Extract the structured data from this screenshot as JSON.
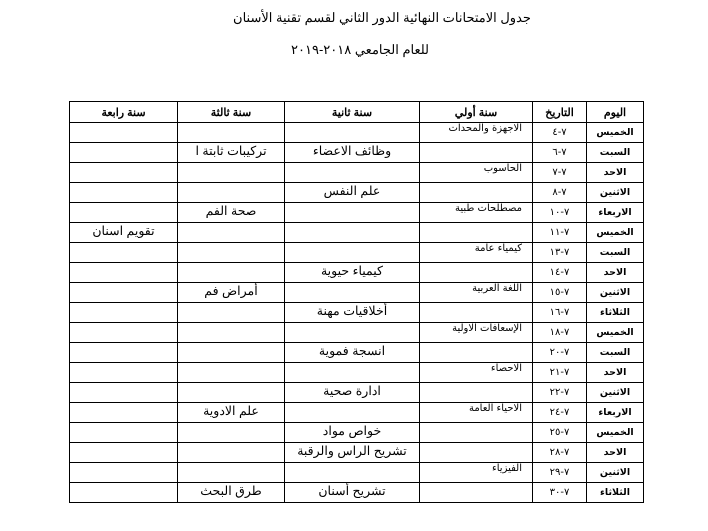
{
  "document": {
    "title": "جدول الامتحانات النهائية الدور الثاني  لقسم تقنية الأسنان",
    "subtitle": "للعام الجامعي ٢٠١٨-٢٠١٩"
  },
  "table": {
    "headers": [
      "اليوم",
      "التاريخ",
      "سنة أولي",
      "سنة ثانية",
      "سنة ثالثة",
      "سنة رابعة"
    ],
    "rows": [
      {
        "day": "الخميس",
        "date": "٧-٤",
        "year1": "الاجهزة والمحدات",
        "year2": "",
        "year3": "",
        "year4": ""
      },
      {
        "day": "السبت",
        "date": "٧-٦",
        "year1": "",
        "year2": "وظائف الاعضاء",
        "year3": "تركيبات ثابتة ا",
        "year4": ""
      },
      {
        "day": "الاحد",
        "date": "٧-٧",
        "year1": "الحاسوب",
        "year2": "",
        "year3": "",
        "year4": ""
      },
      {
        "day": "الاثنين",
        "date": "٧-٨",
        "year1": "",
        "year2": "علم النفس",
        "year3": "",
        "year4": ""
      },
      {
        "day": "الاربعاء",
        "date": "٧-١٠",
        "year1": "مصطلحات طبية",
        "year2": "",
        "year3": "صحة الفم",
        "year4": ""
      },
      {
        "day": "الخميس",
        "date": "٧-١١",
        "year1": "",
        "year2": "",
        "year3": "",
        "year4": "تقويم اسنان"
      },
      {
        "day": "السبت",
        "date": "٧-١٣",
        "year1": "كيمياء عامة",
        "year2": "",
        "year3": "",
        "year4": ""
      },
      {
        "day": "الاحد",
        "date": "٧-١٤",
        "year1": "",
        "year2": "كيمياء حيوية",
        "year3": "",
        "year4": ""
      },
      {
        "day": "الاثنين",
        "date": "٧-١٥",
        "year1": "اللغة العربية",
        "year2": "",
        "year3": "أمراض فم",
        "year4": ""
      },
      {
        "day": "الثلاثاء",
        "date": "٧-١٦",
        "year1": "",
        "year2": "أخلاقيات مهنة",
        "year3": "",
        "year4": ""
      },
      {
        "day": "الخميس",
        "date": "٧-١٨",
        "year1": "الإسعافات الاولية",
        "year2": "",
        "year3": "",
        "year4": ""
      },
      {
        "day": "السبت",
        "date": "٧-٢٠",
        "year1": "",
        "year2": "انسجة فموية",
        "year3": "",
        "year4": ""
      },
      {
        "day": "الاحد",
        "date": "٧-٢١",
        "year1": "الاحصاء",
        "year2": "",
        "year3": "",
        "year4": ""
      },
      {
        "day": "الاثنين",
        "date": "٧-٢٢",
        "year1": "",
        "year2": "ادارة صحية",
        "year3": "",
        "year4": ""
      },
      {
        "day": "الاربعاء",
        "date": "٧-٢٤",
        "year1": "الاحياء العامة",
        "year2": "",
        "year3": "علم الادوية",
        "year4": ""
      },
      {
        "day": "الخميس",
        "date": "٧-٢٥",
        "year1": "",
        "year2": "خواص مواد",
        "year3": "",
        "year4": ""
      },
      {
        "day": "الاحد",
        "date": "٧-٢٨",
        "year1": "",
        "year2": "تشريح الراس والرقبة",
        "year3": "",
        "year4": ""
      },
      {
        "day": "الاثنين",
        "date": "٧-٢٩",
        "year1": "الفيزياء",
        "year2": "",
        "year3": "",
        "year4": ""
      },
      {
        "day": "الثلاثاء",
        "date": "٧-٣٠",
        "year1": "",
        "year2": "تشريح أسنان",
        "year3": "طرق البحث",
        "year4": ""
      }
    ]
  }
}
